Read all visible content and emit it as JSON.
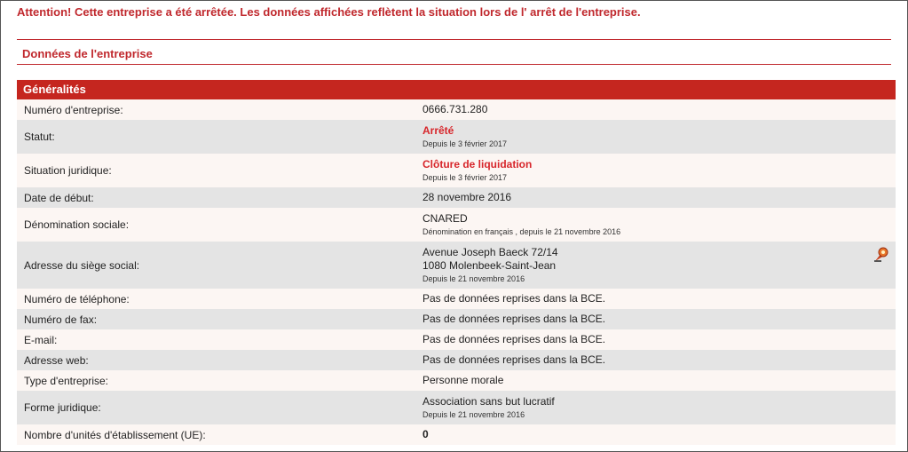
{
  "alert": "Attention! Cette entreprise a été arrêtée. Les données affichées reflètent la situation lors de l' arrêt de l'entreprise.",
  "section_title": "Données de l'entreprise",
  "table": {
    "title": "Généralités",
    "rows": [
      {
        "label": "Numéro d'entreprise:",
        "value": [
          "0666.731.280"
        ]
      },
      {
        "label": "Statut:",
        "value": [
          "Arrêté"
        ],
        "note": "Depuis le 3 février 2017"
      },
      {
        "label": "Situation juridique:",
        "value": [
          "Clôture de liquidation"
        ],
        "note": "Depuis le 3 février 2017"
      },
      {
        "label": "Date de début:",
        "value": [
          "28 novembre 2016"
        ]
      },
      {
        "label": "Dénomination sociale:",
        "value": [
          "CNARED"
        ],
        "note": "Dénomination en français , depuis le 21 novembre 2016"
      },
      {
        "label": "Adresse du siège social:",
        "value": [
          "Avenue Joseph Baeck 72/14",
          "1080 Molenbeek-Saint-Jean"
        ],
        "note": "Depuis le 21 novembre 2016"
      },
      {
        "label": "Numéro de téléphone:",
        "value": [
          "Pas de données reprises dans la BCE."
        ]
      },
      {
        "label": "Numéro de fax:",
        "value": [
          "Pas de données reprises dans la BCE."
        ]
      },
      {
        "label": "E-mail:",
        "value": [
          "Pas de données reprises dans la BCE."
        ]
      },
      {
        "label": "Adresse web:",
        "value": [
          "Pas de données reprises dans la BCE."
        ]
      },
      {
        "label": "Type d'entreprise:",
        "value": [
          "Personne morale"
        ]
      },
      {
        "label": "Forme juridique:",
        "value": [
          "Association sans but lucratif"
        ],
        "note": "Depuis le 21 novembre 2016"
      },
      {
        "label": "Nombre d'unités d'établissement (UE):",
        "value": [
          "0"
        ]
      }
    ]
  }
}
